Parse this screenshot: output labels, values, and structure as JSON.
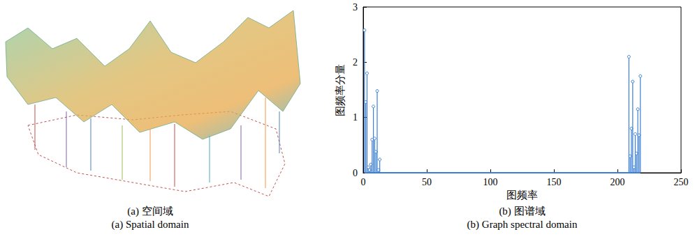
{
  "chart_data": [
    {
      "type": "graph_signal_3d",
      "caption": [
        "(a) 空间域",
        "(a) Spatial domain"
      ]
    },
    {
      "type": "stem",
      "caption": [
        "(b) 图谱域",
        "(b) Graph spectral domain"
      ],
      "x_label": "图频率",
      "y_label": "图频率分量",
      "x": [
        1,
        2,
        3,
        4,
        5,
        6,
        7,
        8,
        9,
        10,
        11,
        12,
        13,
        209,
        210,
        211,
        212,
        213,
        214,
        215,
        216,
        217,
        218
      ],
      "values": [
        2.58,
        1.28,
        1.8,
        0.1,
        0.05,
        0.15,
        0.6,
        1.2,
        0.62,
        0.38,
        1.48,
        0.05,
        0.24,
        2.1,
        0.3,
        0.8,
        1.65,
        0.1,
        0.7,
        0.35,
        1.15,
        0.68,
        1.75
      ],
      "color": "#3c7fd6",
      "marker": "o",
      "xlim": [
        0,
        250
      ],
      "xticks": [
        0,
        50,
        100,
        150,
        200,
        250
      ],
      "ylim": [
        0,
        3
      ],
      "yticks": [
        0,
        1,
        2,
        3
      ],
      "grid": false
    }
  ]
}
